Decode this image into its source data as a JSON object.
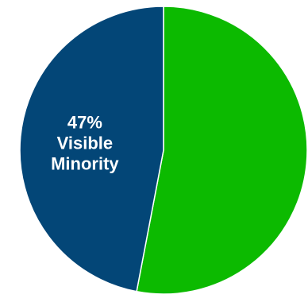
{
  "chart_data": {
    "type": "pie",
    "title": "",
    "start_angle_deg": 0,
    "direction": "clockwise",
    "slices": [
      {
        "value": 53,
        "color": "#0cba00",
        "label_lines": []
      },
      {
        "value": 47,
        "color": "#034677",
        "label_lines": [
          "47%",
          "Visible",
          "Minority"
        ]
      }
    ],
    "label_color": "#ffffff",
    "divider_color": "#ffffff"
  }
}
